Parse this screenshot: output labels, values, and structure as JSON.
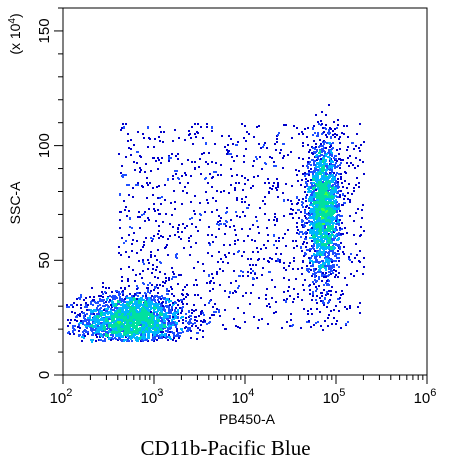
{
  "caption": "CD11b-Pacific Blue",
  "chart_data": {
    "type": "scatter",
    "subtype": "flow-cytometry-density-dot-plot",
    "xlabel": "PB450-A",
    "ylabel": "SSC-A",
    "y_multiplier_label": "(x 10",
    "y_multiplier_exponent": "4",
    "y_multiplier_close": ")",
    "x_scale": "log",
    "xlim": [
      100,
      1000000
    ],
    "ylim": [
      0,
      160
    ],
    "x_ticks": [
      {
        "base": "10",
        "exp": "2"
      },
      {
        "base": "10",
        "exp": "3"
      },
      {
        "base": "10",
        "exp": "4"
      },
      {
        "base": "10",
        "exp": "5"
      },
      {
        "base": "10",
        "exp": "6"
      }
    ],
    "y_ticks": [
      "0",
      "50",
      "100",
      "150"
    ],
    "y_tick_values": [
      0,
      50,
      100,
      150
    ],
    "color_scale": [
      "#0000cc",
      "#1f4fff",
      "#00b4ff",
      "#00e0a0",
      "#40ff40",
      "#c8ff00"
    ],
    "populations": [
      {
        "name": "CD11b-",
        "log10_x_center": 2.75,
        "y_center": 24,
        "log10_x_spread": 0.28,
        "y_spread": 6,
        "count": 2600
      },
      {
        "name": "CD11b+",
        "log10_x_center": 4.85,
        "y_center": 72,
        "log10_x_spread": 0.09,
        "y_spread": 14,
        "count": 2200
      },
      {
        "name": "scattered",
        "log10_x_range": [
          2.6,
          5.3
        ],
        "y_range": [
          20,
          110
        ],
        "count": 1100
      }
    ],
    "grid": false
  }
}
